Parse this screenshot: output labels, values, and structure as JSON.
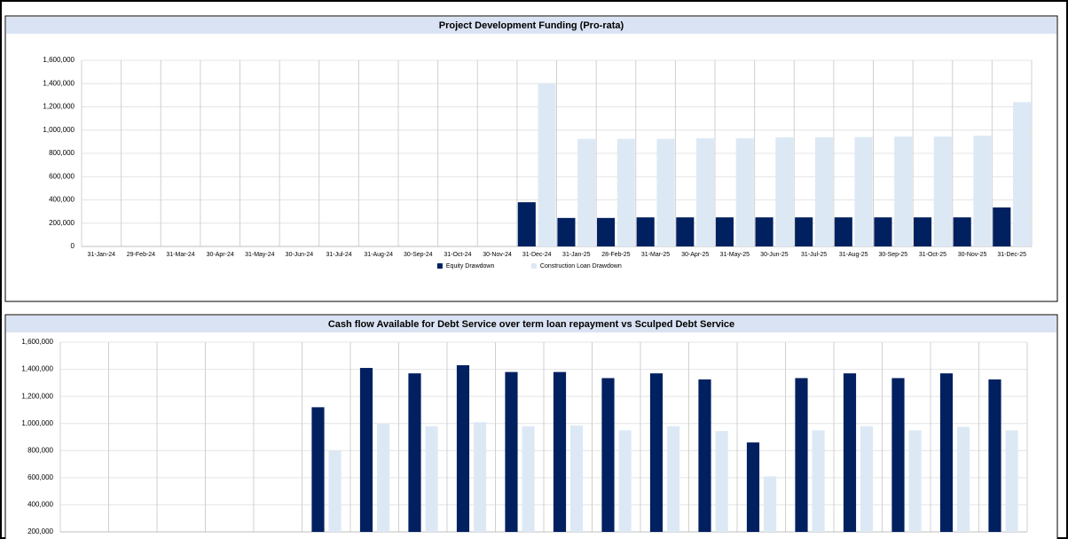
{
  "chart_data": [
    {
      "type": "bar",
      "title": "Project Development Funding (Pro-rata)",
      "categories": [
        "31-Jan-24",
        "29-Feb-24",
        "31-Mar-24",
        "30-Apr-24",
        "31-May-24",
        "30-Jun-24",
        "31-Jul-24",
        "31-Aug-24",
        "30-Sep-24",
        "31-Oct-24",
        "30-Nov-24",
        "31-Dec-24",
        "31-Jan-25",
        "28-Feb-25",
        "31-Mar-25",
        "30-Apr-25",
        "31-May-25",
        "30-Jun-25",
        "31-Jul-25",
        "31-Aug-25",
        "30-Sep-25",
        "31-Oct-25",
        "30-Nov-25",
        "31-Dec-25"
      ],
      "series": [
        {
          "name": "Equity Drawdown",
          "color": "#002060",
          "values": [
            null,
            null,
            null,
            null,
            null,
            null,
            null,
            null,
            null,
            null,
            null,
            380000,
            245000,
            245000,
            250000,
            250000,
            250000,
            250000,
            250000,
            250000,
            250000,
            250000,
            250000,
            335000
          ]
        },
        {
          "name": "Construction Loan Drawdown",
          "color": "#dce9f5",
          "values": [
            null,
            null,
            null,
            null,
            null,
            null,
            null,
            null,
            null,
            null,
            null,
            1400000,
            925000,
            925000,
            925000,
            930000,
            930000,
            937000,
            937000,
            940000,
            945000,
            945000,
            952000,
            1240000
          ]
        }
      ],
      "ylim": [
        0,
        1600000
      ],
      "yticks": [
        0,
        {
          "value": 200000,
          "label": "200,000"
        },
        {
          "value": 400000,
          "label": "400,000"
        },
        {
          "value": 600000,
          "label": "600,000"
        },
        {
          "value": 800000,
          "label": "800,000"
        },
        {
          "value": 1000000,
          "label": "1,000,000"
        },
        {
          "value": 1200000,
          "label": "1,200,000"
        },
        {
          "value": 1400000,
          "label": "1,400,000"
        },
        {
          "value": 1600000,
          "label": "1,600,000"
        }
      ],
      "grid": true,
      "legend": "bottom"
    },
    {
      "type": "bar",
      "title": "Cash flow Available for Debt Service over term loan repayment vs Sculped Debt Service",
      "categories": [
        null,
        null,
        null,
        null,
        null,
        null,
        null,
        null,
        null,
        null,
        null,
        null,
        null,
        null,
        null,
        null,
        null,
        null,
        null,
        null
      ],
      "series": [
        {
          "color": "#002060",
          "values": [
            null,
            null,
            null,
            null,
            null,
            1120000,
            1410000,
            1370000,
            1430000,
            1380000,
            1380000,
            1335000,
            1370000,
            1325000,
            860000,
            1335000,
            1370000,
            1335000,
            1370000,
            1325000
          ]
        },
        {
          "color": "#dce9f5",
          "values": [
            null,
            null,
            null,
            null,
            null,
            800000,
            1000000,
            980000,
            1010000,
            980000,
            985000,
            950000,
            980000,
            945000,
            610000,
            950000,
            980000,
            950000,
            975000,
            950000
          ]
        }
      ],
      "ylim": [
        200000,
        1600000
      ],
      "yticks": [
        {
          "value": 200000,
          "label": "200,000"
        },
        {
          "value": 400000,
          "label": "400,000"
        },
        {
          "value": 600000,
          "label": "600,000"
        },
        {
          "value": 800000,
          "label": "800,000"
        },
        {
          "value": 1000000,
          "label": "1,000,000"
        },
        {
          "value": 1200000,
          "label": "1,200,000"
        },
        {
          "value": 1400000,
          "label": "1,400,000"
        },
        {
          "value": 1600000,
          "label": "1,600,000"
        }
      ],
      "grid": true
    }
  ]
}
